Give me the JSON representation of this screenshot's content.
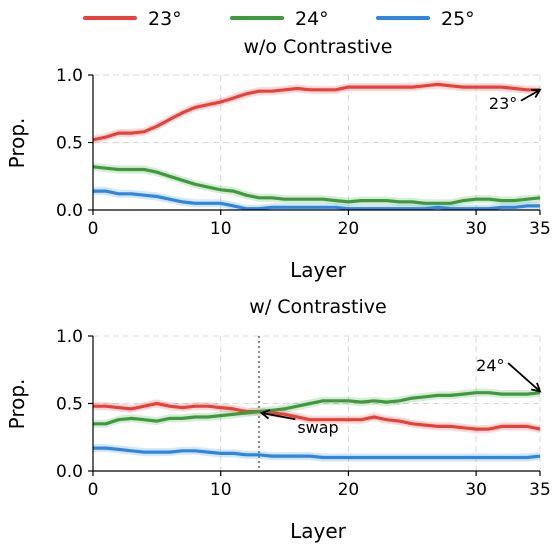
{
  "legend": [
    {
      "label": "23°",
      "color": "#e8413a"
    },
    {
      "label": "24°",
      "color": "#3e9b3c"
    },
    {
      "label": "25°",
      "color": "#2f86e0"
    }
  ],
  "chart_data": [
    {
      "type": "line",
      "title": "w/o Contrastive",
      "title_color": "#d32f2f",
      "xlabel": "Layer",
      "ylabel": "Prop.",
      "xlim": [
        0,
        35
      ],
      "ylim": [
        0,
        1.0
      ],
      "xticks": [
        0,
        10,
        20,
        30,
        35
      ],
      "xtick_labels": [
        "0",
        "10",
        "20",
        "30",
        "35"
      ],
      "yticks": [
        0,
        0.5,
        1.0
      ],
      "ytick_labels": [
        "0.0",
        "0.5",
        "1.0"
      ],
      "grid": true,
      "x": [
        0,
        1,
        2,
        3,
        4,
        5,
        6,
        7,
        8,
        9,
        10,
        11,
        12,
        13,
        14,
        15,
        16,
        17,
        18,
        19,
        20,
        21,
        22,
        23,
        24,
        25,
        26,
        27,
        28,
        29,
        30,
        31,
        32,
        33,
        34,
        35
      ],
      "series": [
        {
          "name": "23°",
          "color": "#e8413a",
          "values": [
            0.52,
            0.54,
            0.57,
            0.57,
            0.58,
            0.62,
            0.67,
            0.72,
            0.76,
            0.78,
            0.8,
            0.83,
            0.86,
            0.88,
            0.88,
            0.89,
            0.9,
            0.89,
            0.89,
            0.89,
            0.91,
            0.91,
            0.91,
            0.91,
            0.91,
            0.91,
            0.92,
            0.93,
            0.92,
            0.91,
            0.91,
            0.91,
            0.91,
            0.9,
            0.89,
            0.89
          ]
        },
        {
          "name": "24°",
          "color": "#3e9b3c",
          "values": [
            0.32,
            0.31,
            0.3,
            0.3,
            0.3,
            0.28,
            0.25,
            0.22,
            0.19,
            0.17,
            0.15,
            0.14,
            0.11,
            0.09,
            0.09,
            0.08,
            0.08,
            0.08,
            0.08,
            0.07,
            0.06,
            0.07,
            0.07,
            0.07,
            0.06,
            0.06,
            0.05,
            0.05,
            0.05,
            0.07,
            0.08,
            0.08,
            0.07,
            0.07,
            0.08,
            0.09
          ]
        },
        {
          "name": "25°",
          "color": "#2f86e0",
          "values": [
            0.14,
            0.14,
            0.12,
            0.12,
            0.11,
            0.1,
            0.08,
            0.06,
            0.05,
            0.05,
            0.05,
            0.03,
            0.01,
            0.01,
            0.02,
            0.02,
            0.02,
            0.02,
            0.02,
            0.02,
            0.01,
            0.01,
            0.01,
            0.01,
            0.01,
            0.01,
            0.01,
            0.02,
            0.01,
            0.01,
            0.01,
            0.01,
            0.02,
            0.02,
            0.03,
            0.03
          ]
        }
      ],
      "annotations": [
        {
          "text": "23°",
          "color": "#d32f2f",
          "arrow_to": [
            35,
            0.89
          ],
          "text_at": [
            31,
            0.75
          ]
        }
      ]
    },
    {
      "type": "line",
      "title": "w/ Contrastive",
      "title_color": "#2e8b2e",
      "xlabel": "Layer",
      "ylabel": "Prop.",
      "xlim": [
        0,
        35
      ],
      "ylim": [
        0,
        1.0
      ],
      "xticks": [
        0,
        10,
        20,
        30,
        35
      ],
      "xtick_labels": [
        "0",
        "10",
        "20",
        "30",
        "35"
      ],
      "yticks": [
        0,
        0.5,
        1.0
      ],
      "ytick_labels": [
        "0.0",
        "0.5",
        "1.0"
      ],
      "grid": true,
      "vline": 13,
      "x": [
        0,
        1,
        2,
        3,
        4,
        5,
        6,
        7,
        8,
        9,
        10,
        11,
        12,
        13,
        14,
        15,
        16,
        17,
        18,
        19,
        20,
        21,
        22,
        23,
        24,
        25,
        26,
        27,
        28,
        29,
        30,
        31,
        32,
        33,
        34,
        35
      ],
      "series": [
        {
          "name": "23°",
          "color": "#e8413a",
          "values": [
            0.48,
            0.48,
            0.47,
            0.46,
            0.48,
            0.5,
            0.48,
            0.47,
            0.48,
            0.48,
            0.47,
            0.46,
            0.44,
            0.44,
            0.43,
            0.42,
            0.4,
            0.38,
            0.38,
            0.38,
            0.38,
            0.38,
            0.4,
            0.38,
            0.37,
            0.35,
            0.34,
            0.33,
            0.33,
            0.32,
            0.31,
            0.31,
            0.33,
            0.33,
            0.33,
            0.31
          ]
        },
        {
          "name": "24°",
          "color": "#3e9b3c",
          "values": [
            0.35,
            0.35,
            0.38,
            0.39,
            0.38,
            0.37,
            0.39,
            0.39,
            0.4,
            0.4,
            0.41,
            0.42,
            0.43,
            0.44,
            0.45,
            0.46,
            0.48,
            0.5,
            0.52,
            0.52,
            0.52,
            0.51,
            0.52,
            0.51,
            0.52,
            0.54,
            0.55,
            0.56,
            0.56,
            0.57,
            0.58,
            0.58,
            0.57,
            0.57,
            0.57,
            0.58
          ]
        },
        {
          "name": "25°",
          "color": "#2f86e0",
          "values": [
            0.17,
            0.17,
            0.16,
            0.15,
            0.14,
            0.14,
            0.14,
            0.15,
            0.15,
            0.14,
            0.13,
            0.13,
            0.12,
            0.12,
            0.11,
            0.11,
            0.11,
            0.11,
            0.1,
            0.1,
            0.1,
            0.1,
            0.1,
            0.1,
            0.1,
            0.1,
            0.1,
            0.1,
            0.1,
            0.1,
            0.1,
            0.1,
            0.1,
            0.1,
            0.1,
            0.11
          ]
        }
      ],
      "annotations": [
        {
          "text": "24°",
          "color": "#2e8b2e",
          "arrow_to": [
            35,
            0.59
          ],
          "text_at": [
            30,
            0.74
          ]
        },
        {
          "text": "swap",
          "color": "#000000",
          "arrow_to": [
            13.2,
            0.43
          ],
          "text_at": [
            16,
            0.28
          ]
        }
      ]
    }
  ]
}
